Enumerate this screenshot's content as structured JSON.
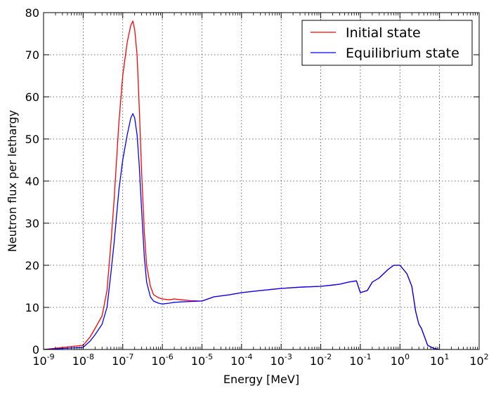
{
  "chart_data": {
    "type": "line",
    "xscale": "log",
    "xlabel": "Energy [MeV]",
    "ylabel": "Neutron flux per lethargy",
    "xlim": [
      1e-09,
      100
    ],
    "ylim": [
      0,
      80
    ],
    "grid": true,
    "legend_position": "top-right",
    "x_ticks": [
      {
        "value": 1e-09,
        "base": "10",
        "exp": "-9"
      },
      {
        "value": 1e-08,
        "base": "10",
        "exp": "-8"
      },
      {
        "value": 1e-07,
        "base": "10",
        "exp": "-7"
      },
      {
        "value": 1e-06,
        "base": "10",
        "exp": "-6"
      },
      {
        "value": 1e-05,
        "base": "10",
        "exp": "-5"
      },
      {
        "value": 0.0001,
        "base": "10",
        "exp": "-4"
      },
      {
        "value": 0.001,
        "base": "10",
        "exp": "-3"
      },
      {
        "value": 0.01,
        "base": "10",
        "exp": "-2"
      },
      {
        "value": 0.1,
        "base": "10",
        "exp": "-1"
      },
      {
        "value": 1,
        "base": "10",
        "exp": "0"
      },
      {
        "value": 10,
        "base": "10",
        "exp": "1"
      },
      {
        "value": 100,
        "base": "10",
        "exp": "2"
      }
    ],
    "y_ticks": [
      0,
      10,
      20,
      30,
      40,
      50,
      60,
      70,
      80
    ],
    "series": [
      {
        "name": "Initial state",
        "color": "#ff0000",
        "x": [
          1e-09,
          1e-08,
          1.5e-08,
          2e-08,
          3e-08,
          4e-08,
          5e-08,
          6e-08,
          8e-08,
          1e-07,
          1.3e-07,
          1.6e-07,
          1.8e-07,
          2e-07,
          2.3e-07,
          2.6e-07,
          3e-07,
          3.5e-07,
          4e-07,
          5e-07,
          6e-07,
          8e-07,
          1e-06,
          1.5e-06,
          2e-06,
          3e-06,
          5e-06,
          1e-05,
          2e-05,
          5e-05,
          0.0001,
          0.0003,
          0.001,
          0.003,
          0.01,
          0.02,
          0.03,
          0.05,
          0.08,
          0.1,
          0.15,
          0.2,
          0.3,
          0.5,
          0.7,
          1,
          1.5,
          2,
          2.5,
          3,
          3.5,
          4,
          5,
          7,
          10
        ],
        "y": [
          0,
          1,
          3,
          5,
          8,
          14,
          25,
          35,
          54,
          65,
          73,
          77,
          78,
          76,
          70,
          58,
          42,
          28,
          20,
          15,
          13,
          12.3,
          12,
          11.8,
          12,
          11.8,
          11.6,
          11.5,
          12.5,
          13,
          13.5,
          14,
          14.5,
          14.8,
          15,
          15.3,
          15.5,
          16,
          16.3,
          13.5,
          14,
          16,
          17,
          19,
          20,
          20,
          18,
          15,
          9,
          6,
          5,
          3.5,
          1,
          0.3,
          0
        ]
      },
      {
        "name": "Equilibrium state",
        "color": "#0000ff",
        "x": [
          1e-09,
          1e-08,
          1.5e-08,
          2e-08,
          3e-08,
          4e-08,
          5e-08,
          6e-08,
          8e-08,
          1e-07,
          1.3e-07,
          1.6e-07,
          1.8e-07,
          2e-07,
          2.3e-07,
          2.6e-07,
          3e-07,
          3.5e-07,
          4e-07,
          5e-07,
          6e-07,
          8e-07,
          1e-06,
          1.5e-06,
          2e-06,
          3e-06,
          5e-06,
          1e-05,
          2e-05,
          5e-05,
          0.0001,
          0.0003,
          0.001,
          0.003,
          0.01,
          0.02,
          0.03,
          0.05,
          0.08,
          0.1,
          0.15,
          0.2,
          0.3,
          0.5,
          0.7,
          1,
          1.5,
          2,
          2.5,
          3,
          3.5,
          4,
          5,
          7,
          10
        ],
        "y": [
          0,
          0.5,
          2,
          3.5,
          6,
          10,
          18,
          25,
          38,
          45,
          51,
          55,
          56,
          55,
          51,
          44,
          33,
          22,
          16,
          12.5,
          11.5,
          11,
          10.8,
          11,
          11.2,
          11.3,
          11.4,
          11.5,
          12.5,
          13,
          13.5,
          14,
          14.5,
          14.8,
          15,
          15.3,
          15.5,
          16,
          16.3,
          13.5,
          14,
          16,
          17,
          19,
          20,
          20,
          18,
          15,
          9,
          6,
          5,
          3.5,
          1,
          0.3,
          0
        ]
      }
    ]
  }
}
